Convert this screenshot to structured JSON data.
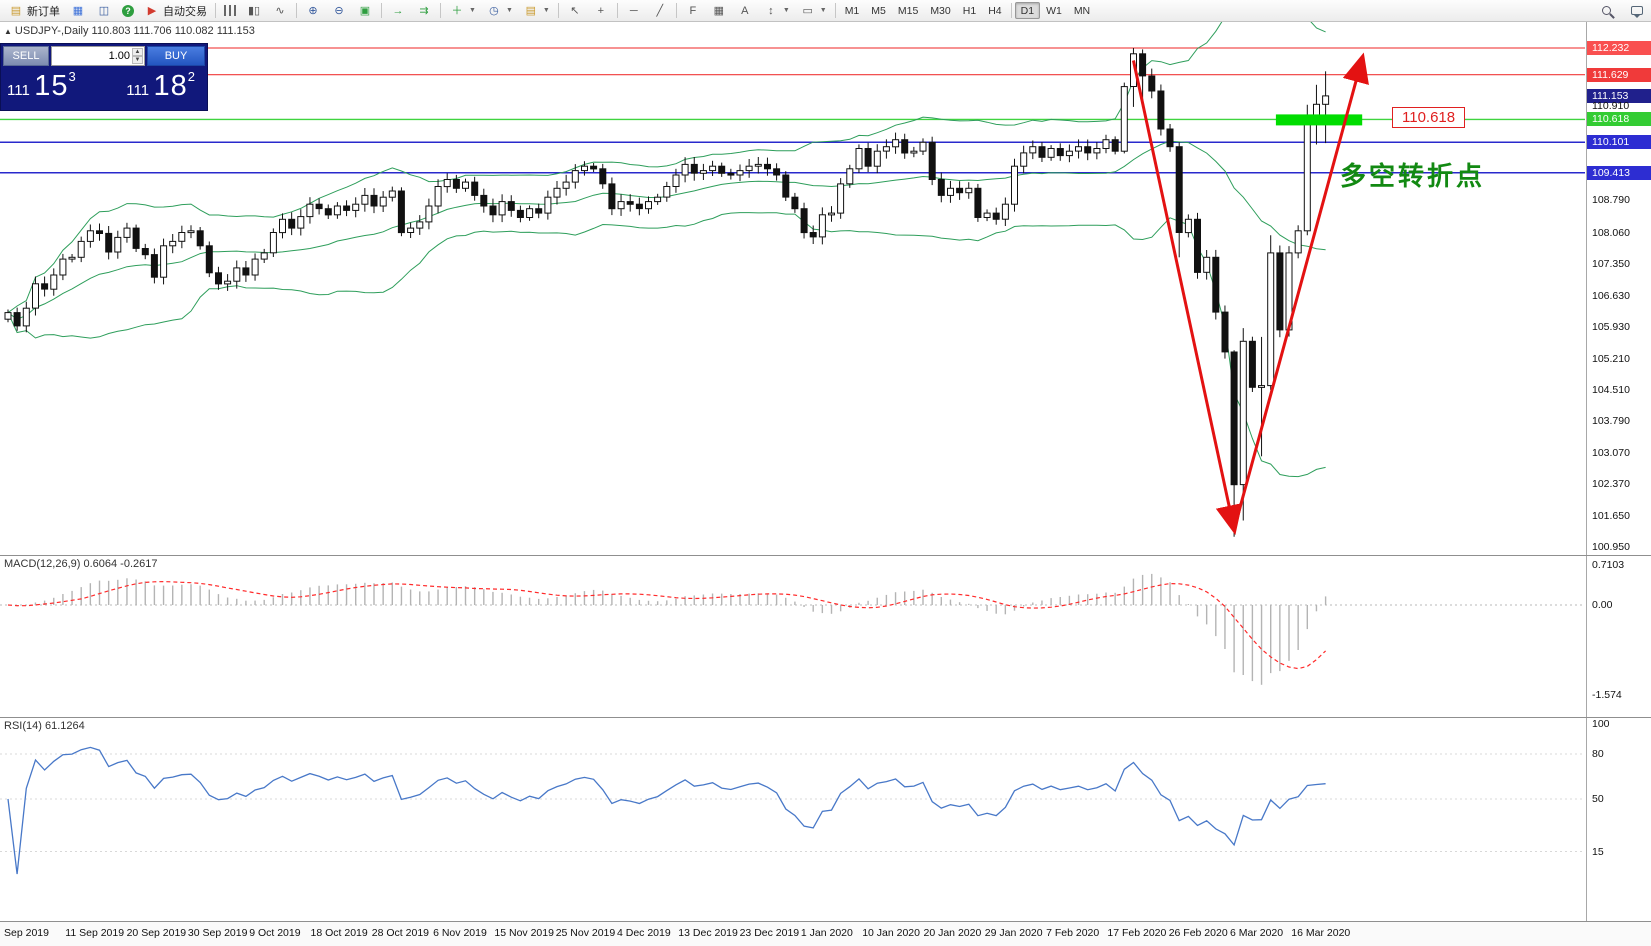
{
  "toolbar": {
    "new_order": "新订单",
    "auto_trading": "自动交易",
    "timeframes": [
      "M1",
      "M5",
      "M15",
      "M30",
      "H1",
      "H4",
      "D1",
      "W1",
      "MN"
    ],
    "active_timeframe": "D1"
  },
  "trade_panel": {
    "sell_label": "SELL",
    "buy_label": "BUY",
    "volume": "1.00",
    "sell_price_prefix": "111",
    "sell_price_big": "15",
    "sell_price_sup": "3",
    "buy_price_prefix": "111",
    "buy_price_big": "18",
    "buy_price_sup": "2"
  },
  "chart": {
    "symbol_info": "USDJPY-,Daily 110.803 111.706 110.082 111.153",
    "annotation": "多空转折点",
    "price_callout": "110.618"
  },
  "chart_data": {
    "type": "candlestick",
    "symbol": "USDJPY-",
    "timeframe": "Daily",
    "current_ohlc": {
      "open": 110.803,
      "high": 111.706,
      "low": 110.082,
      "close": 111.153
    },
    "x_labels": [
      "Sep 2019",
      "11 Sep 2019",
      "20 Sep 2019",
      "30 Sep 2019",
      "9 Oct 2019",
      "18 Oct 2019",
      "28 Oct 2019",
      "6 Nov 2019",
      "15 Nov 2019",
      "25 Nov 2019",
      "4 Dec 2019",
      "13 Dec 2019",
      "23 Dec 2019",
      "1 Jan 2020",
      "10 Jan 2020",
      "20 Jan 2020",
      "29 Jan 2020",
      "7 Feb 2020",
      "17 Feb 2020",
      "26 Feb 2020",
      "6 Mar 2020",
      "16 Mar 2020"
    ],
    "closes": [
      106.25,
      105.95,
      106.35,
      106.9,
      106.78,
      107.1,
      107.46,
      107.5,
      107.86,
      108.1,
      108.04,
      107.62,
      107.95,
      108.16,
      107.7,
      107.56,
      107.05,
      107.76,
      107.86,
      108.06,
      108.1,
      107.76,
      107.15,
      106.9,
      106.96,
      107.26,
      107.1,
      107.46,
      107.6,
      108.06,
      108.36,
      108.16,
      108.42,
      108.7,
      108.6,
      108.46,
      108.66,
      108.56,
      108.7,
      108.9,
      108.66,
      108.86,
      109.0,
      108.06,
      108.16,
      108.3,
      108.66,
      109.1,
      109.26,
      109.06,
      109.2,
      108.9,
      108.66,
      108.46,
      108.76,
      108.56,
      108.4,
      108.6,
      108.5,
      108.86,
      109.06,
      109.2,
      109.46,
      109.56,
      109.5,
      109.16,
      108.6,
      108.76,
      108.7,
      108.6,
      108.76,
      108.86,
      109.1,
      109.36,
      109.6,
      109.4,
      109.46,
      109.56,
      109.4,
      109.36,
      109.46,
      109.56,
      109.6,
      109.5,
      109.36,
      108.86,
      108.6,
      108.06,
      107.96,
      108.46,
      108.5,
      109.16,
      109.5,
      109.96,
      109.56,
      109.9,
      110.0,
      110.16,
      109.86,
      109.9,
      110.1,
      109.26,
      108.9,
      109.06,
      108.96,
      109.06,
      108.4,
      108.5,
      108.36,
      108.7,
      109.56,
      109.86,
      110.0,
      109.76,
      109.96,
      109.8,
      109.9,
      110.0,
      109.86,
      109.96,
      110.16,
      109.9,
      111.36,
      112.1,
      111.6,
      111.26,
      110.4,
      110.0,
      108.06,
      108.36,
      107.16,
      107.5,
      106.26,
      105.36,
      102.36,
      105.6,
      104.56,
      104.6,
      107.6,
      105.86,
      107.6,
      108.1,
      110.7,
      110.96,
      111.15
    ],
    "range_overrides": {
      "122": [
        109.85,
        111.45
      ],
      "123": [
        110.9,
        112.232
      ],
      "124": [
        111.0,
        112.2
      ],
      "128": [
        107.5,
        110.1
      ],
      "134": [
        101.18,
        105.4
      ],
      "135": [
        101.55,
        105.9
      ],
      "137": [
        103.0,
        105.7
      ],
      "138": [
        104.5,
        108.0
      ],
      "142": [
        108.0,
        110.95
      ],
      "143": [
        110.05,
        111.4
      ],
      "144": [
        110.082,
        111.706
      ]
    },
    "bollinger": {
      "period": 20,
      "deviations": 2,
      "color": "#2e9e5b"
    },
    "hlines": [
      {
        "price": 112.232,
        "color": "#f25050",
        "width": 1.2
      },
      {
        "price": 111.629,
        "color": "#f03a3a",
        "width": 1.2
      },
      {
        "price": 110.618,
        "color": "#3fd43f",
        "width": 1.4
      },
      {
        "price": 110.101,
        "color": "#2929cc",
        "width": 1.5
      },
      {
        "price": 109.413,
        "color": "#2929cc",
        "width": 1.5
      }
    ],
    "price_axis": {
      "special": [
        {
          "text": "112.232",
          "color": "#f95050"
        },
        {
          "text": "111.629",
          "color": "#f03a3a"
        },
        {
          "text": "111.153",
          "color": "#20208c"
        },
        {
          "text": "110.618",
          "color": "#33cc33"
        },
        {
          "text": "110.101",
          "color": "#2d2dd2"
        },
        {
          "text": "109.413",
          "color": "#2d2dd2"
        }
      ],
      "plain": [
        "110.910",
        "108.790",
        "108.060",
        "107.350",
        "106.630",
        "105.930",
        "105.210",
        "104.510",
        "103.790",
        "103.070",
        "102.370",
        "101.650",
        "100.950"
      ]
    },
    "drawings": {
      "arrow_color": "#e31212",
      "v_arrows": {
        "start_index": 123,
        "start_price": 111.95,
        "bottom_index": 134,
        "bottom_price": 101.35,
        "end_index": 148,
        "end_price": 112.0
      },
      "highlight": {
        "price": 110.618,
        "from_index": 139,
        "to_index": 148,
        "color": "#00dd00"
      }
    },
    "indicators": [
      {
        "name": "MACD",
        "label": "MACD(12,26,9) 0.6064 -0.2617",
        "axis_labels": [
          "0.7103",
          "0.00",
          "-1.574"
        ],
        "axis_values": [
          0.7103,
          0,
          -1.574
        ],
        "histogram_color": "#b4b4b4",
        "signal_color": "#ff2a2a"
      },
      {
        "name": "RSI",
        "label": "RSI(14) 61.1264",
        "axis_labels": [
          "100",
          "80",
          "50",
          "15"
        ],
        "axis_values": [
          100,
          80,
          50,
          15
        ],
        "line_color": "#4878c8"
      }
    ]
  }
}
